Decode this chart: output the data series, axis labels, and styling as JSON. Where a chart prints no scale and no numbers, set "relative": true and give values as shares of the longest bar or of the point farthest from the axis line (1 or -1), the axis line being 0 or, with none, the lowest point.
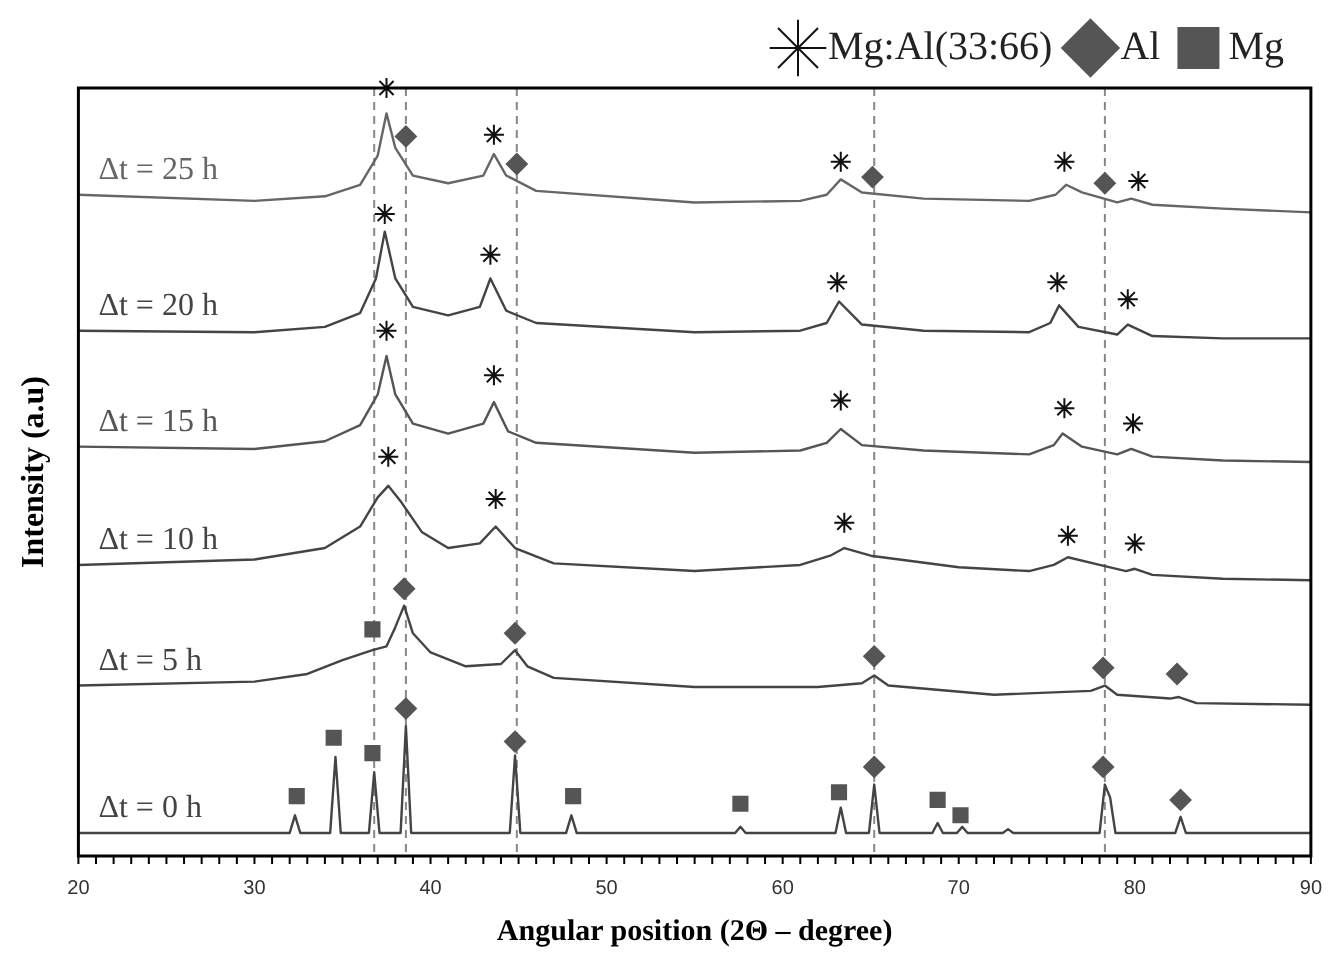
{
  "chart_data": {
    "type": "line",
    "relative": true,
    "xlabel": "Angular position (2Θ – degree)",
    "ylabel": "Intensity (a.u)",
    "xlim": [
      20,
      90
    ],
    "xticks": [
      20,
      30,
      40,
      50,
      60,
      70,
      80,
      90
    ],
    "legend": "top right",
    "line_style": "solid",
    "ref_lines": [
      {
        "axis": "x",
        "value": 36.8,
        "color": "#888888",
        "line_style": "dashed"
      },
      {
        "axis": "x",
        "value": 38.6,
        "color": "#888888",
        "line_style": "dashed"
      },
      {
        "axis": "x",
        "value": 44.9,
        "color": "#888888",
        "line_style": "dashed"
      },
      {
        "axis": "x",
        "value": 65.2,
        "color": "#888888",
        "line_style": "dashed"
      },
      {
        "axis": "x",
        "value": 78.3,
        "color": "#888888",
        "line_style": "dashed"
      }
    ],
    "series": [
      {
        "name": "Δt = 25 h",
        "color": "#666666",
        "x": [
          20,
          30,
          34,
          36,
          37,
          37.5,
          38,
          39,
          41,
          43,
          43.6,
          44.3,
          46,
          55,
          61,
          62.5,
          63.3,
          64.5,
          68,
          74,
          75.5,
          76.1,
          77,
          79,
          79.8,
          81,
          85,
          90
        ],
        "values": [
          0.861,
          0.853,
          0.859,
          0.874,
          0.912,
          0.967,
          0.922,
          0.886,
          0.876,
          0.886,
          0.914,
          0.886,
          0.866,
          0.851,
          0.853,
          0.861,
          0.881,
          0.864,
          0.856,
          0.853,
          0.861,
          0.874,
          0.864,
          0.851,
          0.856,
          0.848,
          0.843,
          0.838
        ]
      },
      {
        "name": "Δt = 20 h",
        "color": "#444444",
        "x": [
          20,
          30,
          34,
          36,
          36.9,
          37.4,
          38,
          39,
          41,
          42.8,
          43.4,
          44.3,
          46,
          55,
          61,
          62.5,
          63.2,
          64.5,
          68,
          74,
          75.2,
          75.7,
          76.8,
          79,
          79.6,
          81,
          85,
          90
        ],
        "values": [
          0.684,
          0.682,
          0.689,
          0.707,
          0.752,
          0.813,
          0.752,
          0.715,
          0.704,
          0.715,
          0.752,
          0.71,
          0.694,
          0.682,
          0.684,
          0.694,
          0.722,
          0.692,
          0.684,
          0.682,
          0.694,
          0.717,
          0.689,
          0.679,
          0.692,
          0.677,
          0.674,
          0.674
        ]
      },
      {
        "name": "Δt = 15 h",
        "color": "#555555",
        "x": [
          20,
          30,
          34,
          36,
          37,
          37.5,
          38,
          39,
          41,
          43,
          43.6,
          44.4,
          46,
          55,
          61,
          62.5,
          63.3,
          64.5,
          68,
          74,
          75.4,
          75.9,
          77,
          79,
          79.8,
          81,
          85,
          90
        ],
        "values": [
          0.533,
          0.53,
          0.54,
          0.561,
          0.601,
          0.651,
          0.601,
          0.563,
          0.55,
          0.563,
          0.591,
          0.553,
          0.538,
          0.525,
          0.528,
          0.538,
          0.556,
          0.535,
          0.528,
          0.523,
          0.535,
          0.55,
          0.533,
          0.523,
          0.53,
          0.52,
          0.515,
          0.513
        ]
      },
      {
        "name": "Δt = 10 h",
        "color": "#444444",
        "x": [
          20,
          30,
          34,
          36,
          37,
          37.6,
          38.3,
          39.5,
          41,
          42.8,
          43.7,
          44.8,
          47,
          55,
          61,
          62.7,
          63.5,
          65,
          70,
          74,
          75.4,
          76.2,
          78,
          79.5,
          80,
          81,
          85,
          90
        ],
        "values": [
          0.379,
          0.386,
          0.401,
          0.429,
          0.467,
          0.482,
          0.462,
          0.422,
          0.401,
          0.407,
          0.429,
          0.401,
          0.381,
          0.371,
          0.379,
          0.391,
          0.401,
          0.391,
          0.376,
          0.371,
          0.379,
          0.389,
          0.379,
          0.371,
          0.374,
          0.366,
          0.361,
          0.359
        ]
      },
      {
        "name": "Δt = 5 h",
        "color": "#444444",
        "x": [
          20,
          30,
          33,
          35,
          36.7,
          37.5,
          38,
          38.5,
          39,
          40,
          42,
          44,
          44.8,
          45.5,
          47,
          55,
          62,
          64.5,
          65.2,
          66,
          72,
          77.5,
          78.3,
          79,
          82,
          82.5,
          83.5,
          90
        ],
        "values": [
          0.222,
          0.227,
          0.237,
          0.255,
          0.268,
          0.273,
          0.298,
          0.326,
          0.29,
          0.265,
          0.247,
          0.25,
          0.268,
          0.247,
          0.232,
          0.22,
          0.22,
          0.225,
          0.235,
          0.222,
          0.21,
          0.215,
          0.222,
          0.21,
          0.205,
          0.207,
          0.199,
          0.197
        ]
      },
      {
        "name": "Δt = 0 h",
        "color": "#444444",
        "x": [
          20,
          32,
          32.3,
          32.6,
          34.3,
          34.6,
          34.9,
          36.5,
          36.8,
          37.1,
          38.3,
          38.6,
          38.9,
          44.5,
          44.8,
          45.1,
          47.7,
          48,
          48.3,
          57.3,
          57.6,
          57.9,
          63,
          63.3,
          63.6,
          64.9,
          65.2,
          65.5,
          68.5,
          68.8,
          69.1,
          69.9,
          70.2,
          70.5,
          72.5,
          72.8,
          73.1,
          78,
          78.3,
          78.6,
          78.9,
          82.3,
          82.6,
          82.9,
          90
        ],
        "values": [
          0.03,
          0.03,
          0.053,
          0.03,
          0.03,
          0.129,
          0.03,
          0.03,
          0.109,
          0.03,
          0.03,
          0.169,
          0.03,
          0.03,
          0.131,
          0.03,
          0.03,
          0.053,
          0.03,
          0.03,
          0.038,
          0.03,
          0.03,
          0.063,
          0.03,
          0.03,
          0.093,
          0.03,
          0.03,
          0.043,
          0.03,
          0.03,
          0.038,
          0.03,
          0.03,
          0.035,
          0.03,
          0.03,
          0.093,
          0.076,
          0.03,
          0.03,
          0.051,
          0.03,
          0.03
        ]
      },
      {
        "name": "Mg:Al(33:66)",
        "type": "scatter",
        "marker": "cross",
        "color": "#111111",
        "x": [
          37.5,
          43.6,
          63.3,
          76,
          80.2,
          37.4,
          43.4,
          63.1,
          75.6,
          79.6,
          37.5,
          43.6,
          63.3,
          76,
          79.9,
          37.6,
          43.7,
          63.5,
          76.2,
          80
        ],
        "values": [
          1.0,
          0.939,
          0.904,
          0.904,
          0.879,
          0.836,
          0.783,
          0.747,
          0.747,
          0.725,
          0.684,
          0.626,
          0.593,
          0.583,
          0.563,
          0.52,
          0.465,
          0.434,
          0.417,
          0.407
        ]
      },
      {
        "name": "Al",
        "type": "scatter",
        "marker": "diamond",
        "color": "#555555",
        "x": [
          38.6,
          44.9,
          65.1,
          78.3,
          38.5,
          44.8,
          65.2,
          78.2,
          82.4,
          38.6,
          44.8,
          65.2,
          78.2,
          82.6
        ],
        "values": [
          0.937,
          0.901,
          0.884,
          0.876,
          0.348,
          0.29,
          0.26,
          0.245,
          0.237,
          0.192,
          0.149,
          0.116,
          0.116,
          0.073
        ]
      },
      {
        "name": "Mg",
        "type": "scatter",
        "marker": "square",
        "color": "#555555",
        "x": [
          36.7,
          32.4,
          34.5,
          36.7,
          48.1,
          57.6,
          63.2,
          68.8,
          70.1
        ],
        "values": [
          0.295,
          0.078,
          0.154,
          0.134,
          0.078,
          0.068,
          0.083,
          0.073,
          0.053
        ]
      }
    ]
  }
}
